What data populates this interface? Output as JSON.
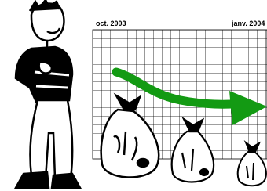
{
  "header": {
    "labels": [
      "oct. 2003",
      "janv. 2004"
    ]
  }
}
